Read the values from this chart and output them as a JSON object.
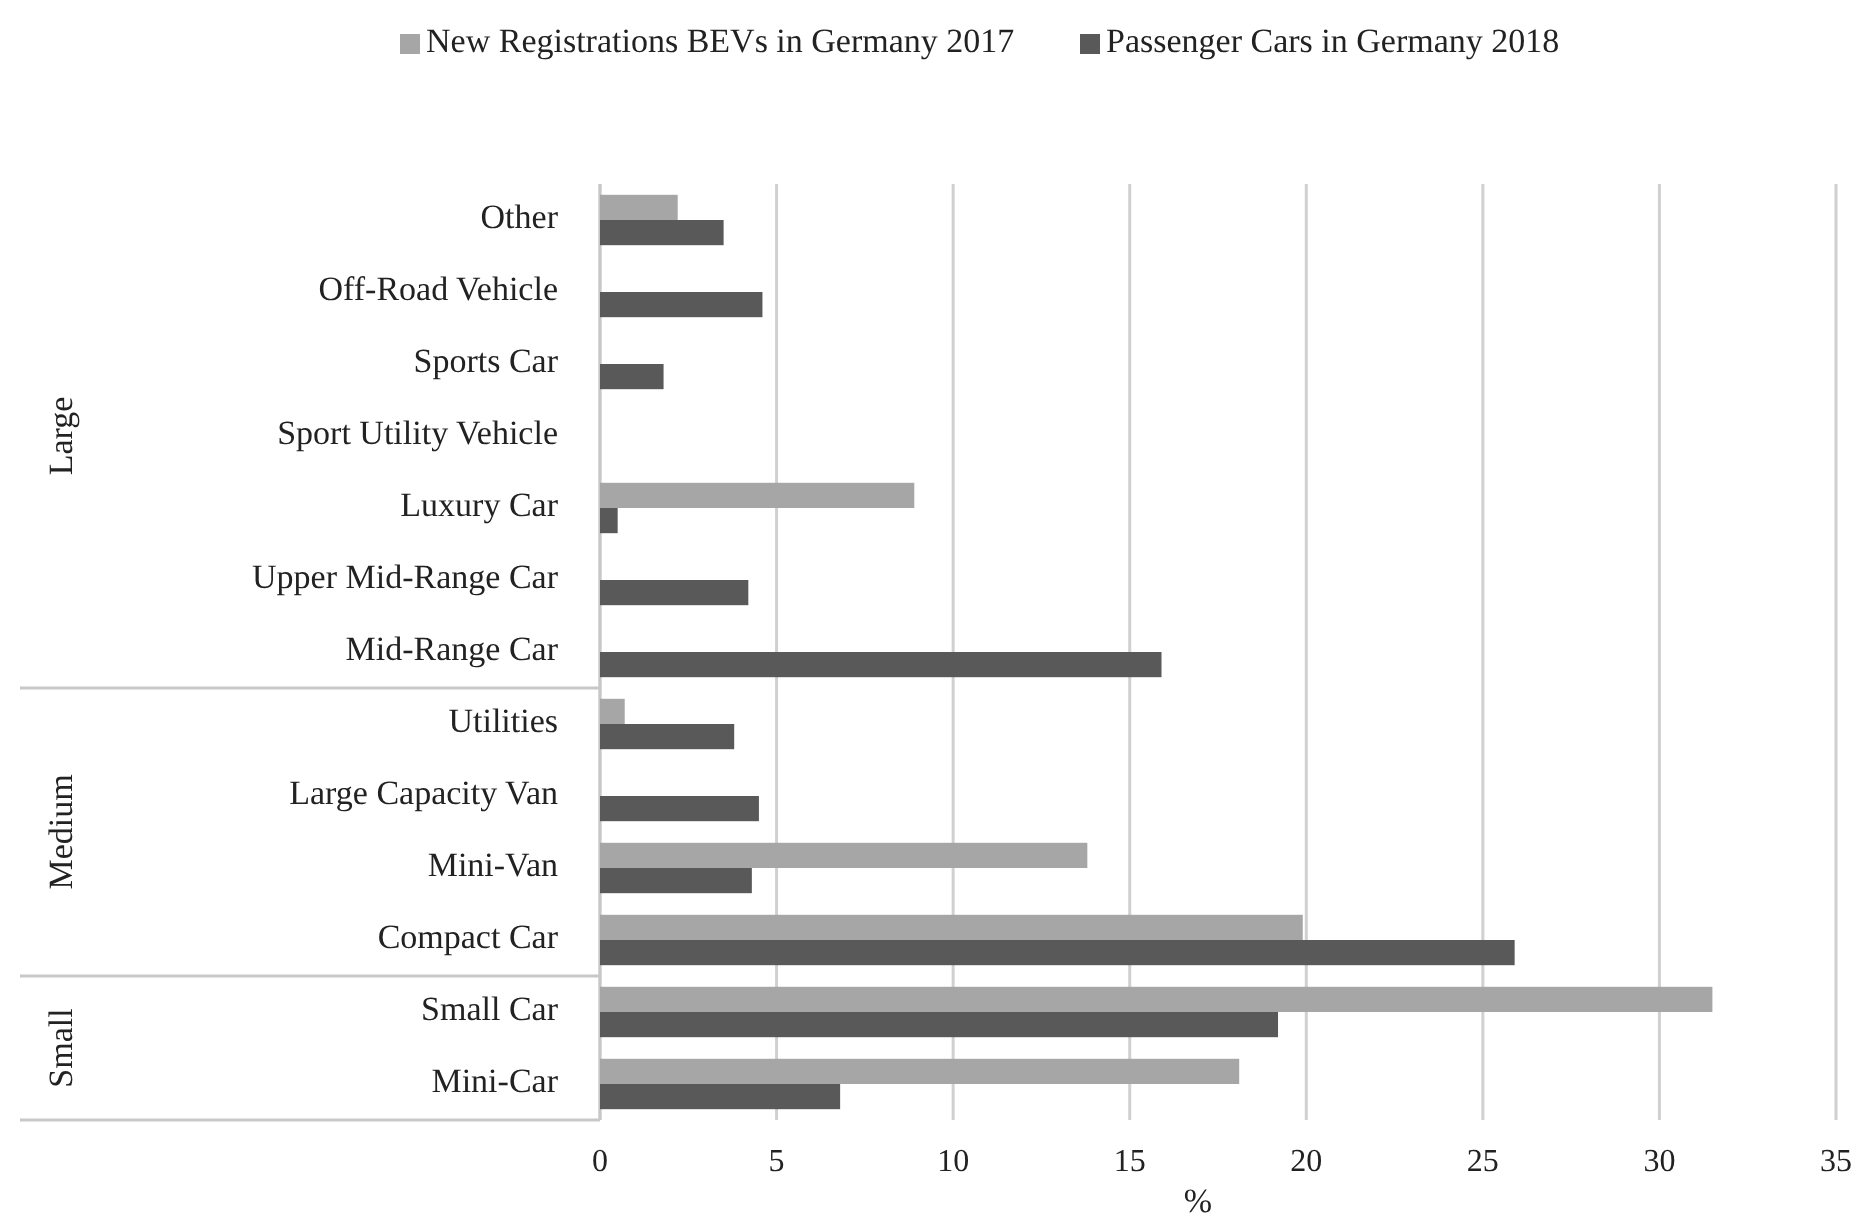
{
  "chart_data": {
    "type": "bar",
    "orientation": "horizontal",
    "xlabel": "%",
    "categories": [
      "Other",
      "Off-Road Vehicle",
      "Sports Car",
      "Sport Utility Vehicle",
      "Luxury Car",
      "Upper Mid-Range Car",
      "Mid-Range Car",
      "Utilities",
      "Large Capacity Van",
      "Mini-Van",
      "Compact Car",
      "Small Car",
      "Mini-Car"
    ],
    "series": [
      {
        "name": "New Registrations BEVs in Germany 2017",
        "color": "#a6a6a6",
        "values": [
          2.2,
          null,
          null,
          null,
          8.9,
          null,
          null,
          0.7,
          null,
          13.8,
          19.9,
          31.5,
          18.1
        ]
      },
      {
        "name": "Passenger Cars in Germany 2018",
        "color": "#595959",
        "values": [
          3.5,
          4.6,
          1.8,
          null,
          0.5,
          4.2,
          15.9,
          3.8,
          4.5,
          4.3,
          25.9,
          19.2,
          6.8
        ]
      }
    ],
    "xlim": [
      0,
      35
    ],
    "xticks": [
      0,
      5,
      10,
      15,
      20,
      25,
      30,
      35
    ],
    "grid": "x",
    "legend": "top",
    "annotations": [
      "Large",
      "Medium",
      "Small"
    ]
  }
}
